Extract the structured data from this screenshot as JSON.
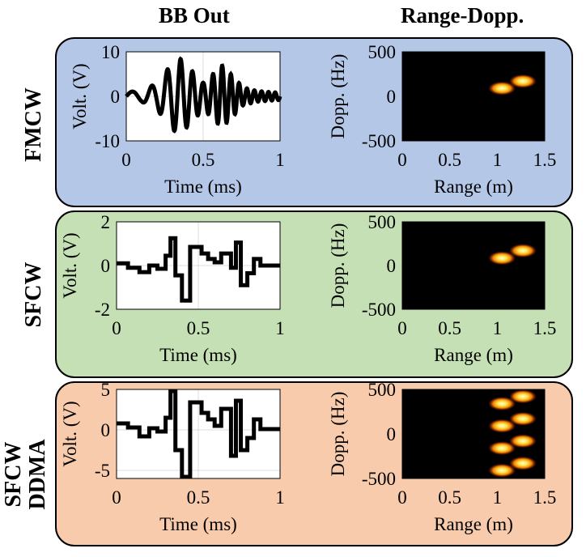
{
  "headers": {
    "bb_out": "BB Out",
    "range_dopp": "Range-Dopp."
  },
  "colors": {
    "fmcw_panel": "#b4c7e7",
    "sfcw_panel": "#c5e0b4",
    "ddma_panel": "#f8cbad",
    "heatmap_bg": "#000000",
    "waveform": "#000000"
  },
  "rows": [
    {
      "label": "FMCW",
      "label_lines": [
        "FMCW"
      ]
    },
    {
      "label": "SFCW",
      "label_lines": [
        "SFCW"
      ]
    },
    {
      "label": "SFCW DDMA",
      "label_lines": [
        "SFCW",
        "DDMA"
      ]
    }
  ],
  "chart_data": [
    {
      "id": "fmcw-bb",
      "type": "line",
      "xlabel": "Time (ms)",
      "ylabel": "Volt. (V)",
      "xlim": [
        0,
        1
      ],
      "ylim": [
        -10,
        10
      ],
      "xticks": [
        0,
        0.5,
        1
      ],
      "xtick_labels": [
        "0",
        "0.5",
        "1"
      ],
      "yticks": [
        10,
        0,
        -10
      ],
      "ytick_labels": [
        "10",
        "0",
        "-10"
      ],
      "grid": true,
      "signal": {
        "kind": "chirp",
        "envelope": [
          [
            0,
            1
          ],
          [
            0.1,
            1.2
          ],
          [
            0.2,
            3
          ],
          [
            0.3,
            7.5
          ],
          [
            0.35,
            8.5
          ],
          [
            0.42,
            6
          ],
          [
            0.5,
            3
          ],
          [
            0.55,
            4.5
          ],
          [
            0.62,
            7
          ],
          [
            0.68,
            5
          ],
          [
            0.76,
            2
          ],
          [
            0.85,
            1.2
          ],
          [
            1,
            0.8
          ]
        ]
      }
    },
    {
      "id": "fmcw-rd",
      "type": "heatmap",
      "xlabel": "Range (m)",
      "ylabel": "Dopp. (Hz)",
      "xlim": [
        0,
        1.5
      ],
      "ylim": [
        -500,
        500
      ],
      "xticks": [
        0,
        0.5,
        1,
        1.5
      ],
      "xtick_labels": [
        "0",
        "0.5",
        "1",
        "1.5"
      ],
      "yticks": [
        500,
        0,
        -500
      ],
      "ytick_labels": [
        "500",
        "0",
        "-500"
      ],
      "peaks": [
        {
          "range": 1.05,
          "doppler": 90
        },
        {
          "range": 1.27,
          "doppler": 170
        }
      ]
    },
    {
      "id": "sfcw-bb",
      "type": "line",
      "xlabel": "Time (ms)",
      "ylabel": "Volt. (V)",
      "xlim": [
        0,
        1
      ],
      "ylim": [
        -2,
        2
      ],
      "xticks": [
        0,
        0.5,
        1
      ],
      "xtick_labels": [
        "0",
        "0.5",
        "1"
      ],
      "yticks": [
        2,
        0,
        -2
      ],
      "ytick_labels": [
        "2",
        "0",
        "-2"
      ],
      "grid": true,
      "signal": {
        "kind": "steps",
        "points": [
          [
            0,
            0.1
          ],
          [
            0.07,
            0.1
          ],
          [
            0.07,
            -0.1
          ],
          [
            0.14,
            -0.1
          ],
          [
            0.14,
            -0.3
          ],
          [
            0.2,
            -0.3
          ],
          [
            0.2,
            0
          ],
          [
            0.25,
            0
          ],
          [
            0.25,
            -0.15
          ],
          [
            0.3,
            -0.15
          ],
          [
            0.3,
            0.45
          ],
          [
            0.33,
            0.45
          ],
          [
            0.33,
            1.25
          ],
          [
            0.36,
            1.25
          ],
          [
            0.36,
            -0.45
          ],
          [
            0.4,
            -0.45
          ],
          [
            0.4,
            -1.6
          ],
          [
            0.45,
            -1.6
          ],
          [
            0.45,
            0.85
          ],
          [
            0.52,
            0.85
          ],
          [
            0.52,
            0.55
          ],
          [
            0.56,
            0.55
          ],
          [
            0.56,
            0.3
          ],
          [
            0.6,
            0.3
          ],
          [
            0.6,
            0.15
          ],
          [
            0.64,
            0.15
          ],
          [
            0.64,
            0.55
          ],
          [
            0.7,
            0.55
          ],
          [
            0.7,
            -0.1
          ],
          [
            0.73,
            -0.1
          ],
          [
            0.73,
            1.05
          ],
          [
            0.76,
            1.05
          ],
          [
            0.76,
            -0.9
          ],
          [
            0.8,
            -0.9
          ],
          [
            0.8,
            -0.35
          ],
          [
            0.84,
            -0.35
          ],
          [
            0.84,
            0.3
          ],
          [
            0.88,
            0.3
          ],
          [
            0.88,
            0
          ],
          [
            1,
            0
          ]
        ]
      }
    },
    {
      "id": "sfcw-rd",
      "type": "heatmap",
      "xlabel": "Range (m)",
      "ylabel": "Dopp. (Hz)",
      "xlim": [
        0,
        1.5
      ],
      "ylim": [
        -500,
        500
      ],
      "xticks": [
        0,
        0.5,
        1,
        1.5
      ],
      "xtick_labels": [
        "0",
        "0.5",
        "1",
        "1.5"
      ],
      "yticks": [
        500,
        0,
        -500
      ],
      "ytick_labels": [
        "500",
        "0",
        "-500"
      ],
      "peaks": [
        {
          "range": 1.05,
          "doppler": 85
        },
        {
          "range": 1.27,
          "doppler": 170
        }
      ]
    },
    {
      "id": "ddma-bb",
      "type": "line",
      "xlabel": "Time (ms)",
      "ylabel": "Volt. (V)",
      "xlim": [
        0,
        1
      ],
      "ylim": [
        -6,
        5
      ],
      "xticks": [
        0,
        0.5,
        1
      ],
      "xtick_labels": [
        "0",
        "0.5",
        "1"
      ],
      "yticks": [
        5,
        0,
        -5
      ],
      "ytick_labels": [
        "5",
        "0",
        "-5"
      ],
      "grid": true,
      "signal": {
        "kind": "steps",
        "points": [
          [
            0,
            0.8
          ],
          [
            0.07,
            0.8
          ],
          [
            0.07,
            0.3
          ],
          [
            0.14,
            0.3
          ],
          [
            0.14,
            -0.8
          ],
          [
            0.2,
            -0.8
          ],
          [
            0.2,
            0.2
          ],
          [
            0.25,
            0.2
          ],
          [
            0.25,
            -0.2
          ],
          [
            0.3,
            -0.2
          ],
          [
            0.3,
            1.5
          ],
          [
            0.33,
            1.5
          ],
          [
            0.33,
            4.8
          ],
          [
            0.36,
            4.8
          ],
          [
            0.36,
            -2.5
          ],
          [
            0.4,
            -2.5
          ],
          [
            0.4,
            -5.8
          ],
          [
            0.45,
            -5.8
          ],
          [
            0.45,
            3.4
          ],
          [
            0.52,
            3.4
          ],
          [
            0.52,
            2.1
          ],
          [
            0.56,
            2.1
          ],
          [
            0.56,
            1.3
          ],
          [
            0.6,
            1.3
          ],
          [
            0.6,
            0.5
          ],
          [
            0.64,
            0.5
          ],
          [
            0.64,
            2.6
          ],
          [
            0.7,
            2.6
          ],
          [
            0.7,
            -3.2
          ],
          [
            0.73,
            -3.2
          ],
          [
            0.73,
            3.6
          ],
          [
            0.76,
            3.6
          ],
          [
            0.76,
            -2.5
          ],
          [
            0.8,
            -2.5
          ],
          [
            0.8,
            -1
          ],
          [
            0.84,
            -1
          ],
          [
            0.84,
            1.3
          ],
          [
            0.88,
            1.3
          ],
          [
            0.88,
            0.1
          ],
          [
            1,
            0.1
          ]
        ]
      }
    },
    {
      "id": "ddma-rd",
      "type": "heatmap",
      "xlabel": "Range (m)",
      "ylabel": "Dopp. (Hz)",
      "xlim": [
        0,
        1.5
      ],
      "ylim": [
        -500,
        500
      ],
      "xticks": [
        0,
        0.5,
        1,
        1.5
      ],
      "xtick_labels": [
        "0",
        "0.5",
        "1",
        "1.5"
      ],
      "yticks": [
        500,
        0,
        -500
      ],
      "ytick_labels": [
        "500",
        "0",
        "-500"
      ],
      "peaks": [
        {
          "range": 1.27,
          "doppler": 420
        },
        {
          "range": 1.05,
          "doppler": 340
        },
        {
          "range": 1.27,
          "doppler": 170
        },
        {
          "range": 1.05,
          "doppler": 90
        },
        {
          "range": 1.27,
          "doppler": -80
        },
        {
          "range": 1.05,
          "doppler": -160
        },
        {
          "range": 1.27,
          "doppler": -330
        },
        {
          "range": 1.05,
          "doppler": -410
        }
      ]
    }
  ]
}
